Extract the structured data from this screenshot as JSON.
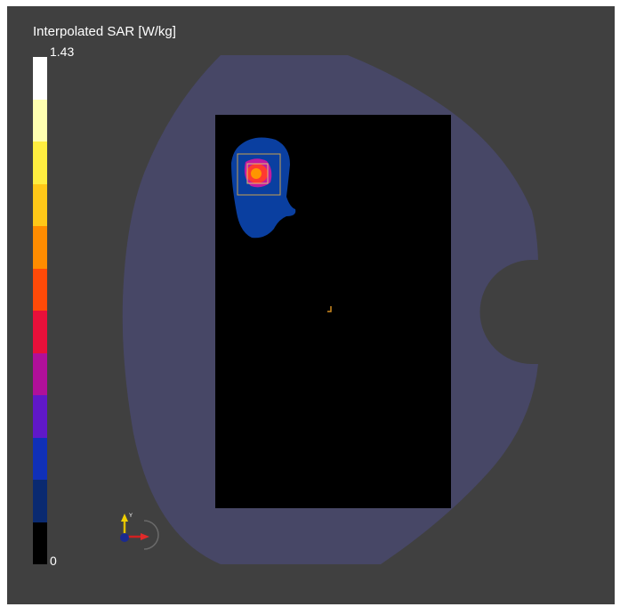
{
  "legend": {
    "title": "Interpolated SAR [W/kg]",
    "max_label": "1.43",
    "min_label": "0",
    "colors_top_to_bottom": [
      "#ffffff",
      "#ffffb0",
      "#ffee40",
      "#ffc818",
      "#ff8c00",
      "#ff4a08",
      "#e8103a",
      "#b0109a",
      "#6018c8",
      "#1030b8",
      "#0a2a70",
      "#000000"
    ]
  },
  "colors": {
    "viewport_background": "#404040",
    "phantom": "#474766",
    "device": "#000000",
    "sar_low": "#0a3fa0",
    "sar_mid": "#c21aa0",
    "sar_high": "#ff3a30",
    "sar_peak": "#ff9500",
    "marker_box": "#c8a050"
  },
  "axes_triad": {
    "x_icon": "red-x-axis-arrow",
    "y_icon": "yellow-y-axis-arrow",
    "z_icon": "blue-z-axis-sphere"
  }
}
